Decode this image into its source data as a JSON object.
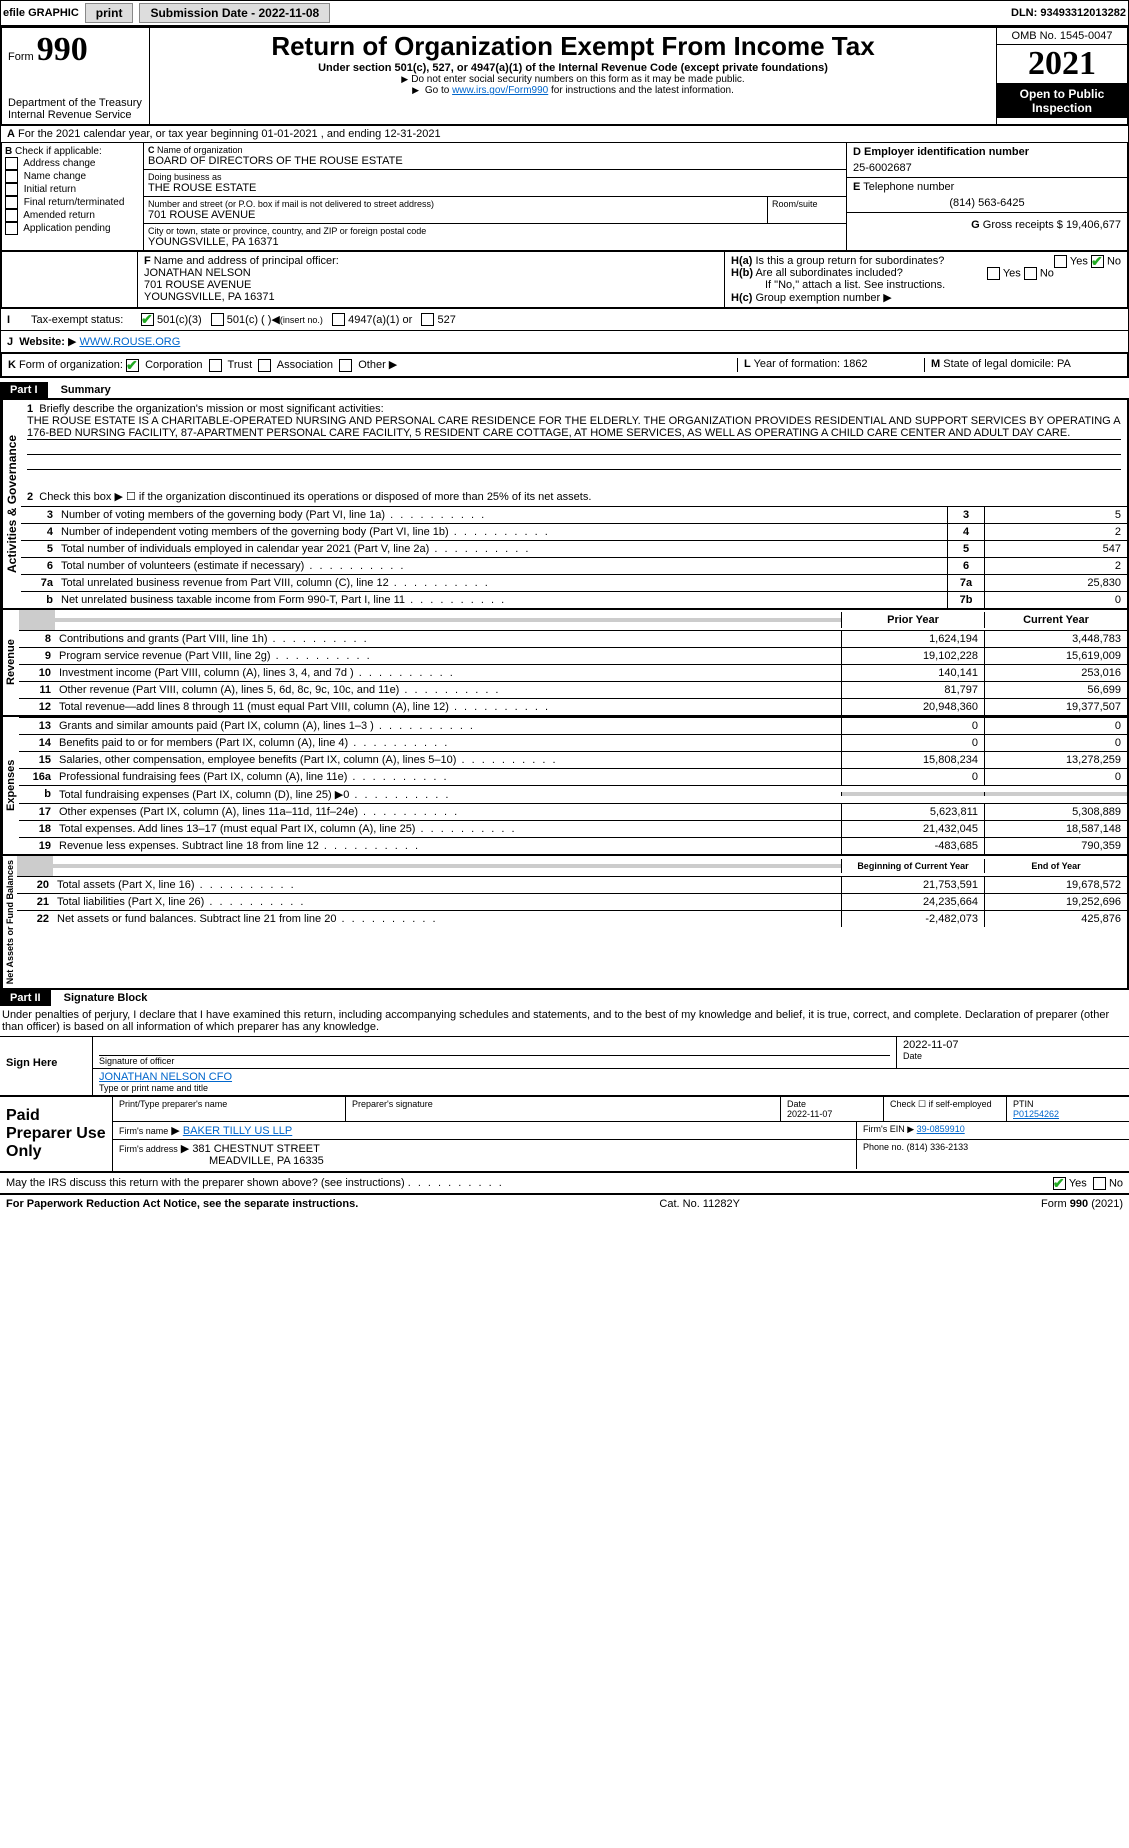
{
  "topbar": {
    "efile_label": "efile GRAPHIC",
    "print_btn": "print",
    "submission_btn": "Submission Date - 2022-11-08",
    "dln_label": "DLN: 93493312013282"
  },
  "header": {
    "form_label": "Form",
    "form_number": "990",
    "title": "Return of Organization Exempt From Income Tax",
    "subtitle": "Under section 501(c), 527, or 4947(a)(1) of the Internal Revenue Code (except private foundations)",
    "warn1": "Do not enter social security numbers on this form as it may be made public.",
    "warn2_pre": "Go to ",
    "warn2_link": "www.irs.gov/Form990",
    "warn2_post": " for instructions and the latest information.",
    "dept": "Department of the Treasury",
    "irs": "Internal Revenue Service",
    "omb": "OMB No. 1545-0047",
    "year": "2021",
    "open": "Open to Public Inspection"
  },
  "A": {
    "line": "For the 2021 calendar year, or tax year beginning 01-01-2021    , and ending 12-31-2021"
  },
  "B": {
    "label": "Check if applicable:",
    "items": [
      "Address change",
      "Name change",
      "Initial return",
      "Final return/terminated",
      "Amended return",
      "Application pending"
    ]
  },
  "C": {
    "name_lbl": "Name of organization",
    "name": "BOARD OF DIRECTORS OF THE ROUSE ESTATE",
    "dba_lbl": "Doing business as",
    "dba": "THE ROUSE ESTATE",
    "addr_lbl": "Number and street (or P.O. box if mail is not delivered to street address)",
    "room_lbl": "Room/suite",
    "addr": "701 ROUSE AVENUE",
    "city_lbl": "City or town, state or province, country, and ZIP or foreign postal code",
    "city": "YOUNGSVILLE, PA  16371"
  },
  "D": {
    "lbl": "Employer identification number",
    "val": "25-6002687"
  },
  "E": {
    "lbl": "Telephone number",
    "val": "(814) 563-6425"
  },
  "G": {
    "lbl": "Gross receipts $",
    "val": "19,406,677"
  },
  "F": {
    "lbl": "Name and address of principal officer:",
    "name": "JONATHAN NELSON",
    "addr1": "701 ROUSE AVENUE",
    "addr2": "YOUNGSVILLE, PA  16371"
  },
  "H": {
    "a_lbl": "Is this a group return for subordinates?",
    "b_lbl": "Are all subordinates included?",
    "b_note": "If \"No,\" attach a list. See instructions.",
    "c_lbl": "Group exemption number",
    "yes": "Yes",
    "no": "No"
  },
  "I": {
    "lbl": "Tax-exempt status:",
    "o1": "501(c)(3)",
    "o2": "501(c) (   )",
    "o2b": "(insert no.)",
    "o3": "4947(a)(1) or",
    "o4": "527"
  },
  "J": {
    "lbl": "Website:",
    "val": "WWW.ROUSE.ORG"
  },
  "K": {
    "lbl": "Form of organization:",
    "opts": [
      "Corporation",
      "Trust",
      "Association",
      "Other"
    ]
  },
  "L": {
    "lbl": "Year of formation:",
    "val": "1862"
  },
  "M": {
    "lbl": "State of legal domicile:",
    "val": "PA"
  },
  "partI": {
    "hdr": "Part I",
    "title": "Summary",
    "line1_lbl": "Briefly describe the organization's mission or most significant activities:",
    "mission": "THE ROUSE ESTATE IS A CHARITABLE-OPERATED NURSING AND PERSONAL CARE RESIDENCE FOR THE ELDERLY. THE ORGANIZATION PROVIDES RESIDENTIAL AND SUPPORT SERVICES BY OPERATING A 176-BED NURSING FACILITY, 87-APARTMENT PERSONAL CARE FACILITY, 5 RESIDENT CARE COTTAGE, AT HOME SERVICES, AS WELL AS OPERATING A CHILD CARE CENTER AND ADULT DAY CARE.",
    "line2": "Check this box ▶ ☐ if the organization discontinued its operations or disposed of more than 25% of its net assets.",
    "lines_top": [
      {
        "n": "3",
        "t": "Number of voting members of the governing body (Part VI, line 1a)",
        "box": "3",
        "v": "5"
      },
      {
        "n": "4",
        "t": "Number of independent voting members of the governing body (Part VI, line 1b)",
        "box": "4",
        "v": "2"
      },
      {
        "n": "5",
        "t": "Total number of individuals employed in calendar year 2021 (Part V, line 2a)",
        "box": "5",
        "v": "547"
      },
      {
        "n": "6",
        "t": "Total number of volunteers (estimate if necessary)",
        "box": "6",
        "v": "2"
      },
      {
        "n": "7a",
        "t": "Total unrelated business revenue from Part VIII, column (C), line 12",
        "box": "7a",
        "v": "25,830"
      },
      {
        "n": "b",
        "t": "Net unrelated business taxable income from Form 990-T, Part I, line 11",
        "box": "7b",
        "v": "0"
      }
    ],
    "col_prior": "Prior Year",
    "col_curr": "Current Year",
    "rev_rows": [
      {
        "n": "8",
        "t": "Contributions and grants (Part VIII, line 1h)",
        "p": "1,624,194",
        "c": "3,448,783"
      },
      {
        "n": "9",
        "t": "Program service revenue (Part VIII, line 2g)",
        "p": "19,102,228",
        "c": "15,619,009"
      },
      {
        "n": "10",
        "t": "Investment income (Part VIII, column (A), lines 3, 4, and 7d )",
        "p": "140,141",
        "c": "253,016"
      },
      {
        "n": "11",
        "t": "Other revenue (Part VIII, column (A), lines 5, 6d, 8c, 9c, 10c, and 11e)",
        "p": "81,797",
        "c": "56,699"
      },
      {
        "n": "12",
        "t": "Total revenue—add lines 8 through 11 (must equal Part VIII, column (A), line 12)",
        "p": "20,948,360",
        "c": "19,377,507"
      }
    ],
    "exp_rows": [
      {
        "n": "13",
        "t": "Grants and similar amounts paid (Part IX, column (A), lines 1–3 )",
        "p": "0",
        "c": "0"
      },
      {
        "n": "14",
        "t": "Benefits paid to or for members (Part IX, column (A), line 4)",
        "p": "0",
        "c": "0"
      },
      {
        "n": "15",
        "t": "Salaries, other compensation, employee benefits (Part IX, column (A), lines 5–10)",
        "p": "15,808,234",
        "c": "13,278,259"
      },
      {
        "n": "16a",
        "t": "Professional fundraising fees (Part IX, column (A), line 11e)",
        "p": "0",
        "c": "0"
      },
      {
        "n": "b",
        "t": "Total fundraising expenses (Part IX, column (D), line 25) ▶0",
        "p": "",
        "c": "",
        "grey": true
      },
      {
        "n": "17",
        "t": "Other expenses (Part IX, column (A), lines 11a–11d, 11f–24e)",
        "p": "5,623,811",
        "c": "5,308,889"
      },
      {
        "n": "18",
        "t": "Total expenses. Add lines 13–17 (must equal Part IX, column (A), line 25)",
        "p": "21,432,045",
        "c": "18,587,148"
      },
      {
        "n": "19",
        "t": "Revenue less expenses. Subtract line 18 from line 12",
        "p": "-483,685",
        "c": "790,359"
      }
    ],
    "col_beg": "Beginning of Current Year",
    "col_end": "End of Year",
    "net_rows": [
      {
        "n": "20",
        "t": "Total assets (Part X, line 16)",
        "p": "21,753,591",
        "c": "19,678,572"
      },
      {
        "n": "21",
        "t": "Total liabilities (Part X, line 26)",
        "p": "24,235,664",
        "c": "19,252,696"
      },
      {
        "n": "22",
        "t": "Net assets or fund balances. Subtract line 21 from line 20",
        "p": "-2,482,073",
        "c": "425,876"
      }
    ],
    "side_gov": "Activities & Governance",
    "side_rev": "Revenue",
    "side_exp": "Expenses",
    "side_net": "Net Assets or Fund Balances"
  },
  "partII": {
    "hdr": "Part II",
    "title": "Signature Block",
    "decl": "Under penalties of perjury, I declare that I have examined this return, including accompanying schedules and statements, and to the best of my knowledge and belief, it is true, correct, and complete. Declaration of preparer (other than officer) is based on all information of which preparer has any knowledge.",
    "sign_here": "Sign Here",
    "sig_officer": "Signature of officer",
    "date_lbl": "Date",
    "sig_date": "2022-11-07",
    "officer_name": "JONATHAN NELSON CFO",
    "type_name": "Type or print name and title",
    "paid_prep": "Paid Preparer Use Only",
    "prep_name_lbl": "Print/Type preparer's name",
    "prep_sig_lbl": "Preparer's signature",
    "prep_date": "2022-11-07",
    "check_self": "Check ☐ if self-employed",
    "ptin_lbl": "PTIN",
    "ptin": "P01254262",
    "firm_name_lbl": "Firm's name",
    "firm_name": "BAKER TILLY US LLP",
    "firm_ein_lbl": "Firm's EIN",
    "firm_ein": "39-0859910",
    "firm_addr_lbl": "Firm's address",
    "firm_addr1": "381 CHESTNUT STREET",
    "firm_addr2": "MEADVILLE, PA  16335",
    "phone_lbl": "Phone no.",
    "phone": "(814) 336-2133",
    "discuss": "May the IRS discuss this return with the preparer shown above? (see instructions)",
    "paperwork": "For Paperwork Reduction Act Notice, see the separate instructions.",
    "cat": "Cat. No. 11282Y",
    "form_foot": "Form 990 (2021)"
  }
}
